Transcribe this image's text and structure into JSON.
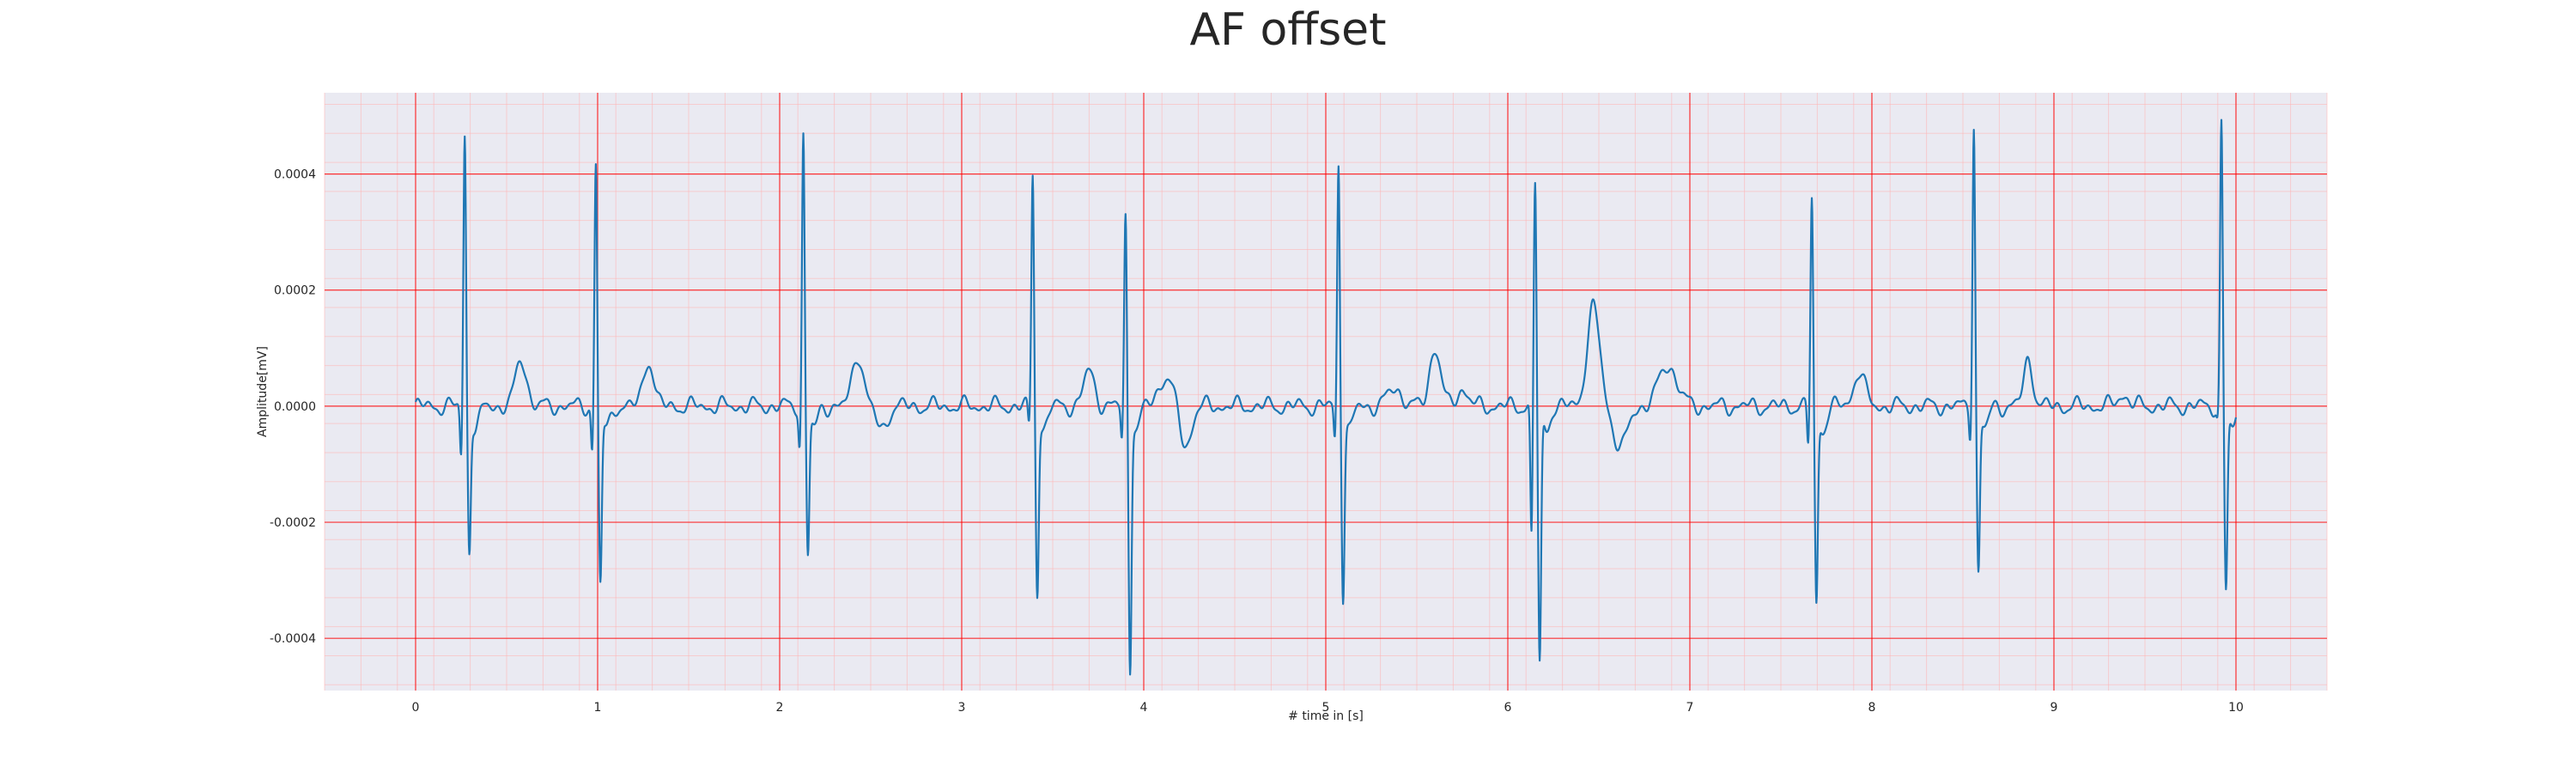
{
  "chart_data": {
    "type": "line",
    "title": "AF offset",
    "xlabel": "# time in [s]",
    "ylabel": "Amplitude[mV]",
    "xlim": [
      -0.5,
      10.5
    ],
    "ylim": [
      -0.00049,
      0.00054
    ],
    "x_ticks": [
      0,
      1,
      2,
      3,
      4,
      5,
      6,
      7,
      8,
      9,
      10
    ],
    "x_tick_labels": [
      "0",
      "1",
      "2",
      "3",
      "4",
      "5",
      "6",
      "7",
      "8",
      "9",
      "10"
    ],
    "y_ticks": [
      -0.0004,
      -0.0002,
      0.0,
      0.0002,
      0.0004
    ],
    "y_tick_labels": [
      "-0.0004",
      "-0.0002",
      "0.0000",
      "0.0002",
      "0.0004"
    ],
    "grid": true,
    "colors": {
      "plot_background": "#eaeaf2",
      "major_grid": "#ff0000",
      "minor_grid": "#ffb3b3",
      "line": "#1f77b4"
    },
    "series": [
      {
        "r_peaks": [
          {
            "t": 0.27,
            "amp": 0.00047,
            "q": -9e-05,
            "s": -0.00024
          },
          {
            "t": 0.99,
            "amp": 0.00042,
            "q": -8e-05,
            "s": -0.0003
          },
          {
            "t": 2.13,
            "amp": 0.00047,
            "q": -7e-05,
            "s": -0.000245
          },
          {
            "t": 3.39,
            "amp": 0.0004,
            "q": -4e-05,
            "s": -0.00031
          },
          {
            "t": 3.9,
            "amp": 0.00033,
            "q": -6e-05,
            "s": -0.00044
          },
          {
            "t": 5.07,
            "amp": 0.00042,
            "q": -6e-05,
            "s": -0.000315
          },
          {
            "t": 6.15,
            "amp": 0.00039,
            "q": -0.00023,
            "s": -0.00044
          },
          {
            "t": 7.67,
            "amp": 0.00036,
            "q": -7e-05,
            "s": -0.000335
          },
          {
            "t": 8.56,
            "amp": 0.00049,
            "q": -5e-05,
            "s": -0.00028
          },
          {
            "t": 9.92,
            "amp": 0.00049,
            "q": -2e-05,
            "s": -0.00031
          }
        ],
        "waves": [
          {
            "t": 0.58,
            "amp": 8e-05,
            "w": 0.03
          },
          {
            "t": 1.28,
            "amp": 8e-05,
            "w": 0.028
          },
          {
            "t": 2.43,
            "amp": 9e-05,
            "w": 0.03
          },
          {
            "t": 2.56,
            "amp": -4e-05,
            "w": 0.03
          },
          {
            "t": 3.7,
            "amp": 6e-05,
            "w": 0.03
          },
          {
            "t": 4.12,
            "amp": 5e-05,
            "w": 0.04
          },
          {
            "t": 4.23,
            "amp": -7e-05,
            "w": 0.03
          },
          {
            "t": 5.38,
            "amp": 3e-05,
            "w": 0.04
          },
          {
            "t": 5.6,
            "amp": 0.0001,
            "w": 0.03
          },
          {
            "t": 5.75,
            "amp": 3e-05,
            "w": 0.03
          },
          {
            "t": 6.47,
            "amp": 0.00017,
            "w": 0.035
          },
          {
            "t": 6.62,
            "amp": -7e-05,
            "w": 0.04
          },
          {
            "t": 6.88,
            "amp": 7e-05,
            "w": 0.05
          },
          {
            "t": 7.93,
            "amp": 6e-05,
            "w": 0.03
          },
          {
            "t": 8.86,
            "amp": 8e-05,
            "w": 0.025
          },
          {
            "t": 9.38,
            "amp": 2e-05,
            "w": 0.03
          }
        ],
        "end_time": 10.0
      }
    ]
  }
}
